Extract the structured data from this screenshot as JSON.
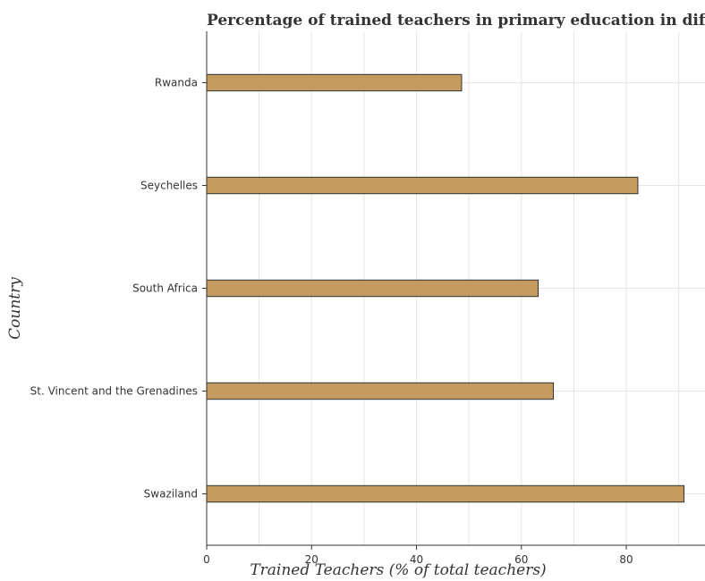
{
  "colors": {
    "bar": "#c49a5e"
  },
  "chart_data": {
    "type": "bar",
    "orientation": "horizontal",
    "title": "Percentage of trained teachers in primary education in different c",
    "xlabel": "Trained Teachers (% of total teachers)",
    "ylabel": "Country",
    "categories": [
      "Rwanda",
      "Seychelles",
      "South Africa",
      "St. Vincent and the Grenadines",
      "Swaziland"
    ],
    "values": [
      48.6,
      82.2,
      63.2,
      66.1,
      91.0
    ],
    "xlim": [
      0,
      95
    ],
    "xticks": [
      0,
      20,
      40,
      60,
      80
    ],
    "grid": true
  }
}
